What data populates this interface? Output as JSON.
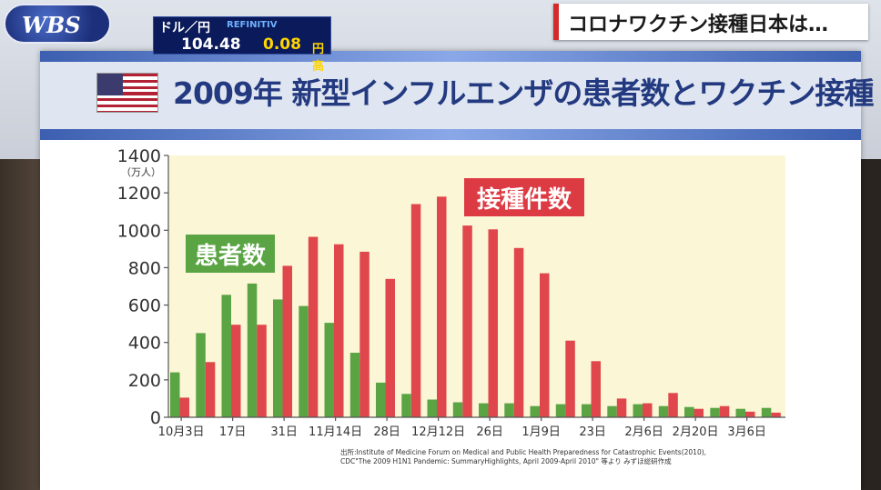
{
  "broadcast": {
    "logo": "WBS",
    "headline": "コロナワクチン接種日本は…",
    "ticker": {
      "pair": "ドル／円",
      "source": "REFINITIV",
      "rate": "104.48",
      "change": "0.08",
      "direction": "円高"
    }
  },
  "board": {
    "flag_icon": "us-flag-icon",
    "title": "2009年 新型インフルエンザの患者数とワクチン接種"
  },
  "colors": {
    "patients": "#5aa444",
    "vaccinations": "#e0474c",
    "plot_background": "#fbf6d6",
    "label_green": "#5aa444",
    "label_red": "#dd3b43"
  },
  "chart_data": {
    "type": "bar",
    "title": "2009年 新型インフルエンザの患者数とワクチン接種",
    "unit_label": "（万人）",
    "ylim": [
      0,
      1400
    ],
    "yticks": [
      0,
      200,
      400,
      600,
      800,
      1000,
      1200,
      1400
    ],
    "grid": false,
    "legend_placement": "inline",
    "series_labels": {
      "patients": "患者数",
      "vaccinations": "接種件数"
    },
    "x_tick_labels": [
      "10月3日",
      "17日",
      "31日",
      "11月14日",
      "28日",
      "12月12日",
      "26日",
      "1月9日",
      "23日",
      "2月6日",
      "2月20日",
      "3月6日"
    ],
    "series": [
      {
        "name": "患者数",
        "values": [
          240,
          450,
          655,
          715,
          630,
          595,
          505,
          345,
          185,
          125,
          95,
          80,
          75,
          75,
          60,
          70,
          70,
          60,
          70,
          60,
          55,
          50,
          45,
          50
        ]
      },
      {
        "name": "接種件数",
        "values": [
          105,
          295,
          495,
          495,
          810,
          965,
          925,
          885,
          740,
          1140,
          1180,
          1025,
          1005,
          905,
          770,
          410,
          300,
          100,
          75,
          130,
          45,
          60,
          30,
          25
        ]
      }
    ],
    "source_note_line1": "出所:Institute of Medicine Forum on Medical and Public Health Preparedness for Catastrophic Events(2010),",
    "source_note_line2": "CDC\"The 2009 H1N1 Pandemic: SummaryHighlights, April 2009-April 2010\" 等より みずほ総研作成"
  }
}
